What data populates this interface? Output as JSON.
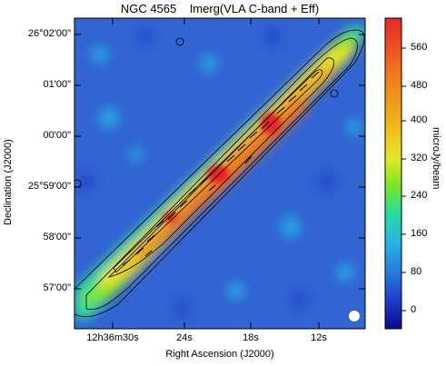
{
  "title": "NGC 4565    Imerg(VLA C-band + Eff)",
  "axes": {
    "xlabel": "Right Ascension (J2000)",
    "ylabel": "Declination (J2000)",
    "x_ticks": [
      "12h36m30s",
      "24s",
      "18s",
      "12s"
    ],
    "y_ticks": [
      "26°02'00\"",
      "01'00\"",
      "00'00\"",
      "25°59'00\"",
      "58'00\"",
      "57'00\""
    ]
  },
  "colorbar": {
    "label": "microJy/beam",
    "ticks": [
      "560",
      "480",
      "400",
      "320",
      "240",
      "160",
      "80",
      "0"
    ],
    "colormap": [
      "#0a0a8c",
      "#1e3cc8",
      "#2878dc",
      "#28b4e6",
      "#28dca0",
      "#78e628",
      "#e6e628",
      "#f0b41e",
      "#f0781e",
      "#e62828"
    ]
  },
  "image": {
    "background_color": "#3264d2",
    "beam_color": "#ffffff",
    "contour_color": "#000000"
  }
}
